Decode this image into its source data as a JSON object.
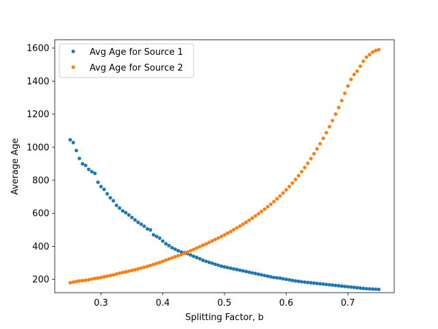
{
  "chart_data": {
    "type": "scatter",
    "title": "",
    "xlabel": "Splitting Factor, b",
    "ylabel": "Average Age",
    "xlim": [
      0.225,
      0.775
    ],
    "ylim": [
      120,
      1650
    ],
    "xticks": [
      0.3,
      0.4,
      0.5,
      0.6,
      0.7
    ],
    "xtick_labels": [
      "0.3",
      "0.4",
      "0.5",
      "0.6",
      "0.7"
    ],
    "yticks": [
      200,
      400,
      600,
      800,
      1000,
      1200,
      1400,
      1600
    ],
    "ytick_labels": [
      "200",
      "400",
      "600",
      "800",
      "1000",
      "1200",
      "1400",
      "1600"
    ],
    "grid": false,
    "legend_position": "top-left",
    "series": [
      {
        "name": "Avg Age for Source 1",
        "color": "#1f77b4",
        "x_start": 0.25,
        "x_end": 0.75,
        "count": 101,
        "y": [
          1045,
          1028,
          980,
          932,
          900,
          890,
          866,
          852,
          842,
          788,
          762,
          745,
          718,
          694,
          676,
          648,
          632,
          615,
          604,
          590,
          575,
          560,
          546,
          534,
          522,
          506,
          500,
          470,
          460,
          450,
          432,
          416,
          405,
          392,
          383,
          374,
          366,
          362,
          356,
          348,
          340,
          333,
          325,
          316,
          310,
          304,
          298,
          292,
          286,
          280,
          276,
          272,
          268,
          264,
          260,
          256,
          252,
          248,
          244,
          240,
          236,
          232,
          228,
          224,
          220,
          216,
          212,
          210,
          208,
          204,
          201,
          198,
          194,
          191,
          189,
          186,
          184,
          182,
          180,
          178,
          176,
          174,
          172,
          170,
          168,
          166,
          164,
          162,
          160,
          158,
          156,
          154,
          152,
          150,
          148,
          146,
          144,
          143,
          142,
          141,
          140
        ]
      },
      {
        "name": "Avg Age for Source 2",
        "color": "#ff7f0e",
        "x_start": 0.25,
        "x_end": 0.75,
        "count": 101,
        "y": [
          180,
          184,
          188,
          191,
          193,
          195,
          198,
          202,
          206,
          209,
          212,
          216,
          220,
          224,
          228,
          233,
          238,
          242,
          246,
          250,
          255,
          259,
          264,
          269,
          274,
          279,
          285,
          291,
          297,
          303,
          310,
          317,
          324,
          330,
          337,
          344,
          351,
          358,
          366,
          374,
          382,
          390,
          398,
          407,
          415,
          424,
          433,
          442,
          451,
          460,
          470,
          480,
          490,
          501,
          512,
          523,
          534,
          546,
          558,
          571,
          584,
          597,
          611,
          625,
          640,
          655,
          671,
          688,
          705,
          723,
          742,
          762,
          783,
          805,
          828,
          852,
          877,
          903,
          931,
          960,
          990,
          1021,
          1054,
          1088,
          1124,
          1161,
          1200,
          1240,
          1282,
          1326,
          1370,
          1410,
          1440,
          1460,
          1490,
          1520,
          1545,
          1560,
          1575,
          1585,
          1590
        ]
      }
    ]
  }
}
